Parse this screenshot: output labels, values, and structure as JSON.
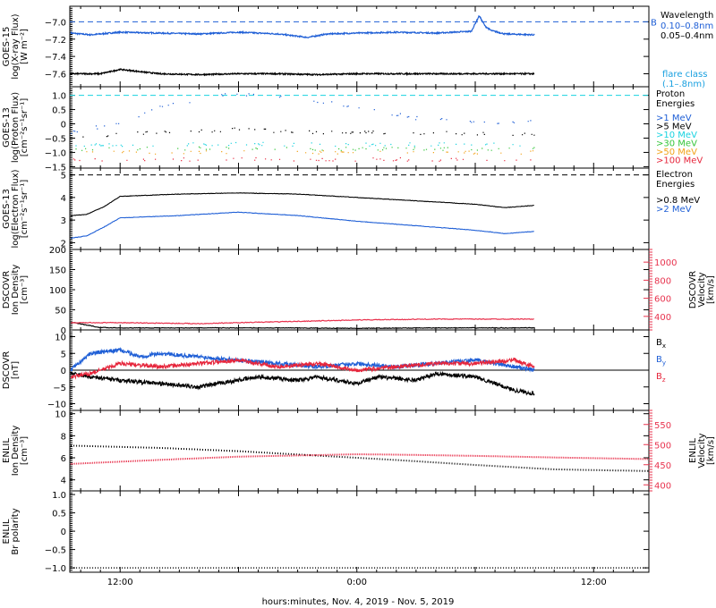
{
  "figure": {
    "xlabel": "hours:minutes, Nov.  4, 2019 - Nov.  5, 2019",
    "xticks": [
      {
        "t": 12,
        "label": "12:00"
      },
      {
        "t": 24,
        "label": "0:00"
      },
      {
        "t": 36,
        "label": "12:00"
      }
    ],
    "xrange_hours": [
      9.45,
      38.8
    ]
  },
  "colors": {
    "black": "#000000",
    "blue": "#1f5fd6",
    "cyan": "#19d3e0",
    "green": "#35c63b",
    "orange": "#f2a31a",
    "red": "#e6263c",
    "crimson": "#e8334e"
  },
  "chart_data": [
    {
      "id": "xray",
      "type": "line",
      "ylabel_lines": [
        "GOES-15",
        "log(X-ray Flux)",
        "[W m⁻²]"
      ],
      "ylim": [
        -7.75,
        -6.82
      ],
      "yticks": [
        -7.0,
        -7.2,
        -7.4,
        -7.6
      ],
      "ref_lines": [
        {
          "y": -7.0,
          "color": "#1f5fd6",
          "dash": true,
          "label": "B"
        }
      ],
      "legend": [
        "Wavelength",
        "0.10–0.8nm",
        "0.05–0.4nm",
        "flare class",
        "(.1–.8nm)"
      ],
      "series": [
        {
          "name": "0.10–0.8nm",
          "color": "#1f5fd6",
          "x": [
            9.5,
            10.5,
            12,
            14,
            16,
            18,
            20,
            21.5,
            22.5,
            24,
            26,
            28,
            29.8,
            30.2,
            30.5,
            30.8,
            31.5,
            33
          ],
          "y": [
            -7.13,
            -7.15,
            -7.12,
            -7.13,
            -7.14,
            -7.12,
            -7.14,
            -7.18,
            -7.14,
            -7.13,
            -7.12,
            -7.13,
            -7.11,
            -6.93,
            -7.05,
            -7.1,
            -7.14,
            -7.15
          ]
        },
        {
          "name": "0.05–0.4nm",
          "color": "#000000",
          "x": [
            9.5,
            11,
            12,
            14,
            16,
            18,
            20,
            22,
            24,
            26,
            28,
            30,
            32,
            33
          ],
          "y": [
            -7.6,
            -7.6,
            -7.55,
            -7.6,
            -7.61,
            -7.6,
            -7.6,
            -7.61,
            -7.6,
            -7.6,
            -7.6,
            -7.6,
            -7.6,
            -7.6
          ]
        }
      ]
    },
    {
      "id": "proton",
      "type": "scatter",
      "ylabel_lines": [
        "GOES-13",
        "log(Proton Flux)",
        "[cm⁻²s⁻¹sr⁻¹]"
      ],
      "ylim": [
        -1.55,
        1.3
      ],
      "yticks": [
        1.0,
        0.5,
        0.0,
        -0.5,
        -1.0,
        -1.5
      ],
      "ref_lines": [
        {
          "y": 1.0,
          "color": "#19d3e0",
          "dash": true
        }
      ],
      "legend": [
        "Proton",
        "Energies"
      ],
      "series": [
        {
          "name": ">1 MeV",
          "color": "#1f5fd6",
          "x": [
            9.5,
            12,
            14,
            17,
            19,
            21,
            23,
            25,
            27,
            29,
            31,
            33
          ],
          "y": [
            -0.3,
            0.05,
            0.6,
            1.0,
            1.0,
            0.85,
            0.7,
            0.45,
            0.2,
            0.1,
            0.05,
            0.1
          ]
        },
        {
          "name": ">5 MeV",
          "color": "#000000",
          "x": [
            9.5,
            14,
            18,
            22,
            26,
            30,
            33
          ],
          "y": [
            -0.45,
            -0.3,
            -0.2,
            -0.3,
            -0.3,
            -0.35,
            -0.35
          ]
        },
        {
          "name": ">10 MeV",
          "color": "#19d3e0",
          "x": [
            9.5,
            14,
            18,
            22,
            26,
            30,
            33
          ],
          "y": [
            -0.75,
            -0.72,
            -0.7,
            -0.73,
            -0.72,
            -0.73,
            -0.72
          ]
        },
        {
          "name": ">30 MeV",
          "color": "#35c63b",
          "x": [
            9.5,
            14,
            18,
            22,
            26,
            30,
            33
          ],
          "y": [
            -0.88,
            -0.87,
            -0.86,
            -0.88,
            -0.87,
            -0.88,
            -0.87
          ]
        },
        {
          "name": ">50 MeV",
          "color": "#f2a31a",
          "x": [
            9.5,
            14,
            18,
            22,
            26,
            30,
            33
          ],
          "y": [
            -1.0,
            -1.0,
            -0.98,
            -1.0,
            -1.0,
            -1.0,
            -1.0
          ]
        },
        {
          "name": ">100 MeV",
          "color": "#e6263c",
          "x": [
            9.5,
            14,
            18,
            22,
            26,
            30,
            33
          ],
          "y": [
            -1.25,
            -1.25,
            -1.24,
            -1.26,
            -1.25,
            -1.25,
            -1.25
          ]
        }
      ]
    },
    {
      "id": "electron",
      "type": "line",
      "ylabel_lines": [
        "GOES-13",
        "log(Electron Flux)",
        "[cm⁻²s⁻¹sr⁻¹]"
      ],
      "ylim": [
        1.7,
        5.3
      ],
      "yticks": [
        5,
        4,
        3,
        2
      ],
      "ref_lines": [
        {
          "y": 5.0,
          "color": "#000000",
          "dash": true
        }
      ],
      "legend": [
        "Electron",
        "Energies"
      ],
      "series": [
        {
          "name": ">0.8 MeV",
          "color": "#000000",
          "x": [
            9.5,
            10.3,
            11.2,
            12,
            15,
            18,
            21,
            24,
            27,
            30,
            31.5,
            33
          ],
          "y": [
            3.2,
            3.25,
            3.6,
            4.05,
            4.15,
            4.2,
            4.15,
            4.0,
            3.85,
            3.7,
            3.55,
            3.65
          ]
        },
        {
          "name": ">2 MeV",
          "color": "#1f5fd6",
          "x": [
            9.5,
            10.3,
            11.2,
            12,
            15,
            18,
            21,
            24,
            27,
            30,
            31.5,
            33
          ],
          "y": [
            2.2,
            2.3,
            2.7,
            3.1,
            3.2,
            3.35,
            3.2,
            2.95,
            2.75,
            2.55,
            2.4,
            2.5
          ]
        }
      ]
    },
    {
      "id": "dscovr_density",
      "type": "line",
      "ylabel_lines": [
        "DSCOVR",
        "Ion Density",
        "[cm⁻³]"
      ],
      "ylabel_right_lines": [
        "DSCOVR",
        "Velocity",
        "[km/s]"
      ],
      "ylim": [
        0,
        200
      ],
      "yticks": [
        200,
        150,
        100,
        50,
        0
      ],
      "ylim_right": [
        250,
        1140
      ],
      "yticks_right": [
        1000,
        800,
        600,
        400
      ],
      "series": [
        {
          "name": "Density",
          "color": "#000000",
          "axis": "left",
          "x": [
            9.5,
            10,
            11,
            12,
            16,
            20,
            24,
            28,
            33
          ],
          "y": [
            20,
            15,
            6,
            5,
            5,
            5,
            4,
            5,
            5
          ]
        },
        {
          "name": "Velocity",
          "color": "#e8334e",
          "axis": "right",
          "x": [
            9.5,
            12,
            16,
            20,
            24,
            28,
            33
          ],
          "y": [
            330,
            330,
            320,
            340,
            360,
            370,
            370
          ]
        }
      ]
    },
    {
      "id": "dscovr_b",
      "type": "line",
      "ylabel_lines": [
        "DSCOVR",
        "[nT]"
      ],
      "ylim": [
        -12,
        12
      ],
      "yticks": [
        10,
        5,
        0,
        -5,
        -10
      ],
      "zero_line": true,
      "legend": [
        "Bx",
        "By",
        "Bz"
      ],
      "series": [
        {
          "name": "Bx",
          "color": "#000000",
          "x": [
            9.5,
            10.5,
            12,
            14,
            16,
            18,
            19,
            21,
            22,
            24,
            25,
            27,
            28,
            30,
            31,
            32,
            33
          ],
          "y": [
            -1,
            -2,
            -3,
            -4,
            -5,
            -3,
            -2,
            -3,
            -2,
            -4,
            -2,
            -3,
            -1,
            -2,
            -4,
            -6,
            -7
          ]
        },
        {
          "name": "By",
          "color": "#1f5fd6",
          "x": [
            9.5,
            10.5,
            12,
            13,
            14,
            16,
            18,
            20,
            22,
            24,
            26,
            28,
            30,
            31,
            32,
            33
          ],
          "y": [
            0,
            5,
            6,
            4,
            5,
            4,
            3,
            2,
            1,
            2,
            1,
            2,
            3,
            2,
            1,
            0
          ]
        },
        {
          "name": "Bz",
          "color": "#e6263c",
          "x": [
            9.5,
            10.5,
            12,
            14,
            16,
            18,
            20,
            22,
            24,
            26,
            28,
            30,
            32,
            33
          ],
          "y": [
            -2,
            -1,
            2,
            1,
            2,
            3,
            1,
            2,
            0,
            1,
            2,
            2,
            3,
            1
          ]
        }
      ]
    },
    {
      "id": "enlil_density",
      "type": "line",
      "ylabel_lines": [
        "ENLIL",
        "Ion Density",
        "[cm⁻³]"
      ],
      "ylabel_right_lines": [
        "ENLIL",
        "Velocity",
        "[km/s]"
      ],
      "ylim": [
        3,
        10.3
      ],
      "yticks": [
        10,
        8,
        6,
        4
      ],
      "ylim_right": [
        385,
        585
      ],
      "yticks_right": [
        550,
        500,
        450,
        400
      ],
      "series": [
        {
          "name": "Density",
          "color": "#000000",
          "axis": "left",
          "x": [
            9.5,
            14,
            18,
            22,
            26,
            30,
            34,
            38.8
          ],
          "y": [
            7.1,
            6.9,
            6.6,
            6.2,
            5.8,
            5.35,
            4.95,
            4.8
          ]
        },
        {
          "name": "Velocity",
          "color": "#e8334e",
          "axis": "right",
          "x": [
            9.5,
            14,
            18,
            22,
            24,
            26,
            30,
            34,
            38.8
          ],
          "y": [
            452,
            462,
            470,
            474,
            476,
            475,
            472,
            468,
            464
          ]
        }
      ]
    },
    {
      "id": "enlil_polarity",
      "type": "line",
      "ylabel_lines": [
        "ENLIL",
        "Br polarity"
      ],
      "ylim": [
        -1.12,
        1.1
      ],
      "yticks": [
        1.0,
        0.5,
        0.0,
        -0.5,
        -1.0
      ],
      "series": [
        {
          "name": "Br polarity",
          "color": "#000000",
          "x": [
            9.5,
            20,
            30,
            38.8
          ],
          "y": [
            -1.0,
            -1.0,
            -1.0,
            -1.0
          ]
        }
      ]
    }
  ]
}
